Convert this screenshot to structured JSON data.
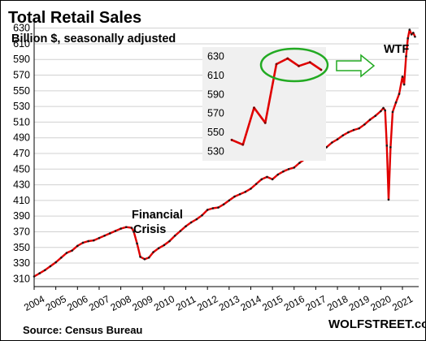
{
  "chart_data": [
    {
      "type": "line",
      "title": "Total Retail Sales",
      "subtitle": "Billion $, seasonally adjusted",
      "xlabel": "",
      "ylabel": "",
      "ylim": [
        300,
        640
      ],
      "xlim": [
        2004,
        2021.75
      ],
      "y_ticks": [
        "310",
        "330",
        "350",
        "370",
        "390",
        "410",
        "430",
        "450",
        "470",
        "490",
        "510",
        "530",
        "550",
        "570",
        "590",
        "610",
        "630"
      ],
      "x_ticks": [
        "2004",
        "2005",
        "2006",
        "2007",
        "2008",
        "2009",
        "2010",
        "2011",
        "2012",
        "2013",
        "2014",
        "2015",
        "2016",
        "2017",
        "2018",
        "2019",
        "2020",
        "2021"
      ],
      "grid": true,
      "colors": {
        "line": "#e00000",
        "markers": "#1a1a1a"
      },
      "series": [
        {
          "x": [
            2004.0,
            2004.25,
            2004.5,
            2004.75,
            2005.0,
            2005.25,
            2005.5,
            2005.75,
            2006.0,
            2006.25,
            2006.5,
            2006.75,
            2007.0,
            2007.25,
            2007.5,
            2007.75,
            2008.0,
            2008.25,
            2008.5,
            2008.6,
            2008.75,
            2008.9,
            2009.1,
            2009.3,
            2009.5,
            2009.75,
            2010.0,
            2010.25,
            2010.5,
            2010.75,
            2011.0,
            2011.25,
            2011.5,
            2011.75,
            2012.0,
            2012.25,
            2012.5,
            2012.75,
            2013.0,
            2013.25,
            2013.5,
            2013.75,
            2014.0,
            2014.25,
            2014.5,
            2014.75,
            2015.0,
            2015.25,
            2015.5,
            2015.75,
            2016.0,
            2016.25,
            2016.5,
            2016.75,
            2017.0,
            2017.25,
            2017.5,
            2017.75,
            2018.0,
            2018.25,
            2018.5,
            2018.75,
            2019.0,
            2019.25,
            2019.5,
            2019.75,
            2020.0,
            2020.12,
            2020.2,
            2020.28,
            2020.36,
            2020.45,
            2020.55,
            2020.7,
            2020.85,
            2021.0,
            2021.08,
            2021.17,
            2021.25,
            2021.33,
            2021.42,
            2021.5,
            2021.58
          ],
          "values": [
            313,
            317,
            321,
            326,
            331,
            337,
            343,
            346,
            352,
            356,
            358,
            359,
            362,
            365,
            368,
            371,
            374,
            376,
            375,
            370,
            355,
            338,
            335,
            337,
            344,
            349,
            353,
            358,
            365,
            371,
            377,
            382,
            386,
            391,
            398,
            400,
            401,
            405,
            410,
            415,
            418,
            421,
            425,
            431,
            437,
            440,
            437,
            443,
            447,
            450,
            452,
            458,
            463,
            468,
            471,
            474,
            478,
            484,
            488,
            493,
            497,
            500,
            502,
            507,
            513,
            518,
            524,
            528,
            525,
            480,
            411,
            478,
            523,
            535,
            546,
            568,
            558,
            594,
            617,
            628,
            622,
            624,
            619
          ]
        }
      ],
      "annotations": [
        "Financial Crisis",
        "WTF"
      ],
      "annotation_lines": [
        "Financial",
        "Crisis"
      ]
    },
    {
      "type": "line",
      "title": "",
      "ylim": [
        520,
        640
      ],
      "y_ticks": [
        "630",
        "610",
        "590",
        "570",
        "550",
        "530"
      ],
      "grid": false,
      "colors": {
        "line": "#e00000",
        "highlight": "#22aa22",
        "arrow": "#22aa22",
        "background": "#f0f0f0"
      },
      "series": [
        {
          "x": [
            1,
            2,
            3,
            4,
            5,
            6,
            7,
            8,
            9
          ],
          "values": [
            542,
            537,
            576,
            560,
            622,
            628,
            620,
            624,
            616
          ]
        }
      ]
    }
  ],
  "footer": {
    "source": "Source: Census Bureau",
    "brand": "WOLFSTREET.com"
  }
}
